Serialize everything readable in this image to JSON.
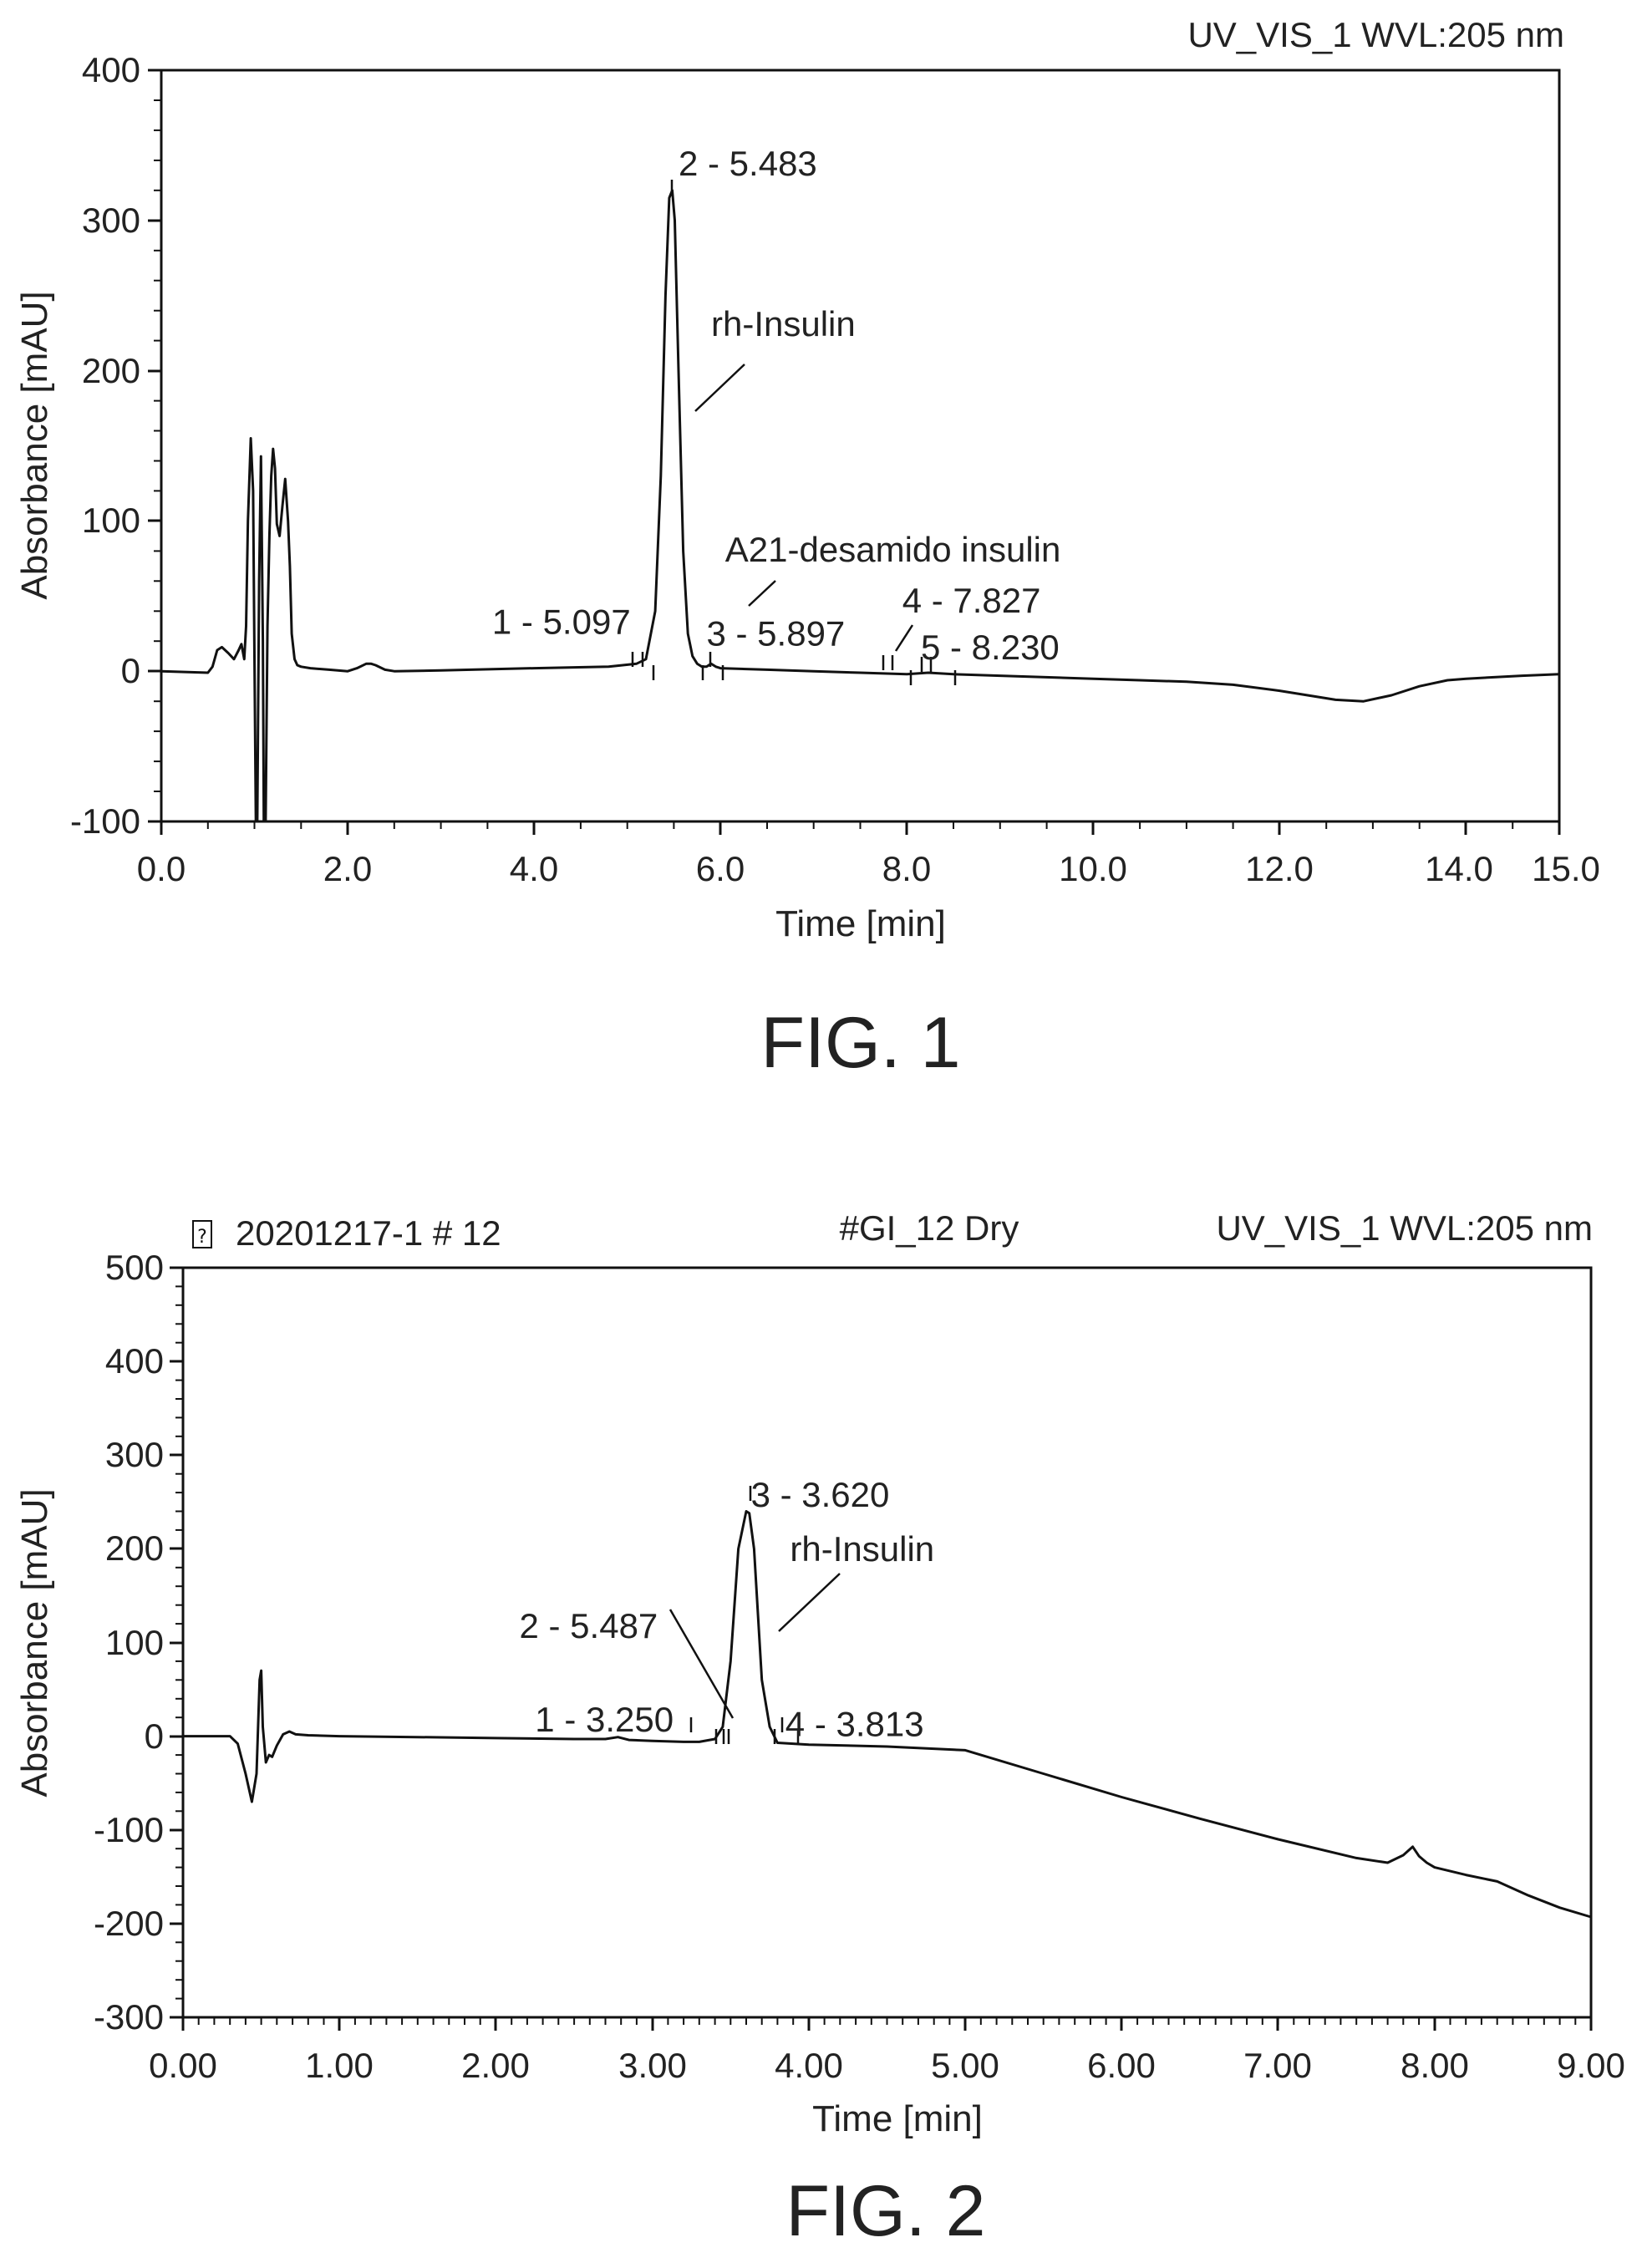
{
  "chart_data": [
    {
      "type": "line",
      "header": {
        "left": "",
        "center": "",
        "right": "UV_VIS_1 WVL:205 nm"
      },
      "xlabel": "Time [min]",
      "ylabel": "Absorbance [mAU]",
      "xlim": [
        0,
        15
      ],
      "ylim": [
        -100,
        400
      ],
      "xticks": [
        "0.0",
        "2.0",
        "4.0",
        "6.0",
        "8.0",
        "10.0",
        "12.0",
        "14.0",
        "15.0"
      ],
      "xtick_values": [
        0,
        2,
        4,
        6,
        8,
        10,
        12,
        14,
        15
      ],
      "yticks": [
        "-100",
        "0",
        "100",
        "200",
        "300",
        "400"
      ],
      "ytick_values": [
        -100,
        0,
        100,
        200,
        300,
        400
      ],
      "caption": "FIG. 1",
      "series": [
        {
          "x": [
            0.0,
            0.5,
            0.55,
            0.6,
            0.65,
            0.72,
            0.78,
            0.83,
            0.86,
            0.89,
            0.91,
            0.93,
            0.96,
            0.985,
            1.0,
            1.015,
            1.03,
            1.05,
            1.07,
            1.09,
            1.1,
            1.12,
            1.14,
            1.16,
            1.18,
            1.2,
            1.22,
            1.24,
            1.27,
            1.3,
            1.33,
            1.36,
            1.38,
            1.4,
            1.43,
            1.46,
            1.5,
            1.6,
            1.8,
            2.0,
            2.1,
            2.2,
            2.25,
            2.3,
            2.4,
            2.5,
            3.0,
            4.0,
            4.8,
            5.1,
            5.2,
            5.3,
            5.36,
            5.41,
            5.45,
            5.483,
            5.51,
            5.55,
            5.6,
            5.65,
            5.7,
            5.75,
            5.8,
            5.85,
            5.9,
            5.95,
            6.0,
            6.5,
            7.0,
            7.5,
            8.0,
            8.23,
            8.5,
            9.0,
            10.0,
            10.5,
            11.0,
            11.5,
            12.0,
            12.3,
            12.6,
            12.9,
            13.2,
            13.5,
            13.8,
            14.0,
            14.3,
            14.6,
            15.0
          ],
          "y": [
            0,
            -1,
            3,
            14,
            16,
            12,
            8,
            14,
            18,
            8,
            30,
            100,
            155,
            120,
            10,
            -100,
            -100,
            60,
            143,
            20,
            -100,
            -100,
            30,
            90,
            130,
            148,
            135,
            98,
            90,
            110,
            128,
            100,
            70,
            25,
            8,
            4,
            3,
            2,
            1,
            0,
            2,
            5,
            5,
            4,
            1,
            0,
            0.5,
            2,
            3,
            5,
            8,
            40,
            130,
            250,
            315,
            320,
            300,
            200,
            80,
            25,
            10,
            5,
            3,
            3,
            5,
            3,
            2,
            1,
            0,
            -1,
            -2,
            -1,
            -2,
            -3,
            -5,
            -6,
            -7,
            -9,
            -13,
            -16,
            -19,
            -20,
            -16,
            -10,
            -6,
            -5,
            -4,
            -3,
            -2
          ]
        }
      ],
      "annotations": [
        {
          "text": "2 - 5.483",
          "x": 5.55,
          "y": 330
        },
        {
          "text": "rh-Insulin",
          "x": 5.9,
          "y": 223
        },
        {
          "text": "A21-desamido insulin",
          "x": 6.05,
          "y": 73
        },
        {
          "text": "1 - 5.097",
          "x": 3.55,
          "y": 25
        },
        {
          "text": "3 - 5.897",
          "x": 5.85,
          "y": 17
        },
        {
          "text": "4 - 7.827",
          "x": 7.95,
          "y": 39
        },
        {
          "text": "5 - 8.230",
          "x": 8.15,
          "y": 8
        }
      ]
    },
    {
      "type": "line",
      "header": {
        "left": "20201217-1 # 12",
        "center": "#GI_12 Dry",
        "right": "UV_VIS_1 WVL:205 nm"
      },
      "xlabel": "Time [min]",
      "ylabel": "Absorbance [mAU]",
      "xlim": [
        0,
        9
      ],
      "ylim": [
        -300,
        500
      ],
      "xticks": [
        "0.00",
        "1.00",
        "2.00",
        "3.00",
        "4.00",
        "5.00",
        "6.00",
        "7.00",
        "8.00",
        "9.00"
      ],
      "xtick_values": [
        0,
        1,
        2,
        3,
        4,
        5,
        6,
        7,
        8,
        9
      ],
      "yticks": [
        "-300",
        "-200",
        "-100",
        "0",
        "100",
        "200",
        "300",
        "400",
        "500"
      ],
      "ytick_values": [
        -300,
        -200,
        -100,
        0,
        100,
        200,
        300,
        400,
        500
      ],
      "caption": "FIG. 2",
      "series": [
        {
          "x": [
            0.0,
            0.2,
            0.3,
            0.35,
            0.4,
            0.44,
            0.47,
            0.49,
            0.5,
            0.51,
            0.53,
            0.55,
            0.57,
            0.6,
            0.64,
            0.68,
            0.72,
            0.8,
            1.0,
            1.5,
            2.0,
            2.5,
            2.7,
            2.78,
            2.85,
            3.0,
            3.2,
            3.3,
            3.4,
            3.45,
            3.5,
            3.55,
            3.6,
            3.62,
            3.65,
            3.7,
            3.75,
            3.8,
            3.9,
            4.0,
            4.5,
            5.0,
            5.5,
            6.0,
            6.5,
            7.0,
            7.5,
            7.7,
            7.8,
            7.86,
            7.9,
            7.95,
            8.0,
            8.2,
            8.4,
            8.6,
            8.8,
            9.0
          ],
          "y": [
            0,
            0,
            0,
            -8,
            -40,
            -70,
            -40,
            60,
            70,
            10,
            -28,
            -20,
            -22,
            -10,
            2,
            5,
            2,
            1,
            0,
            -1,
            -2,
            -3,
            -3,
            -1,
            -4,
            -5,
            -6,
            -6,
            -3,
            10,
            80,
            200,
            240,
            238,
            200,
            60,
            10,
            -7,
            -8,
            -9,
            -11,
            -15,
            -40,
            -65,
            -88,
            -110,
            -130,
            -135,
            -127,
            -118,
            -128,
            -135,
            -140,
            -148,
            -155,
            -170,
            -183,
            -193
          ]
        }
      ],
      "annotations": [
        {
          "text": "3 - 3.620",
          "x": 3.63,
          "y": 245
        },
        {
          "text": "rh-Insulin",
          "x": 3.88,
          "y": 187
        },
        {
          "text": "2 - 5.487",
          "x": 2.15,
          "y": 105
        },
        {
          "text": "1 - 3.250",
          "x": 2.25,
          "y": 5
        },
        {
          "text": "4 - 3.813",
          "x": 3.85,
          "y": 0
        }
      ]
    }
  ]
}
